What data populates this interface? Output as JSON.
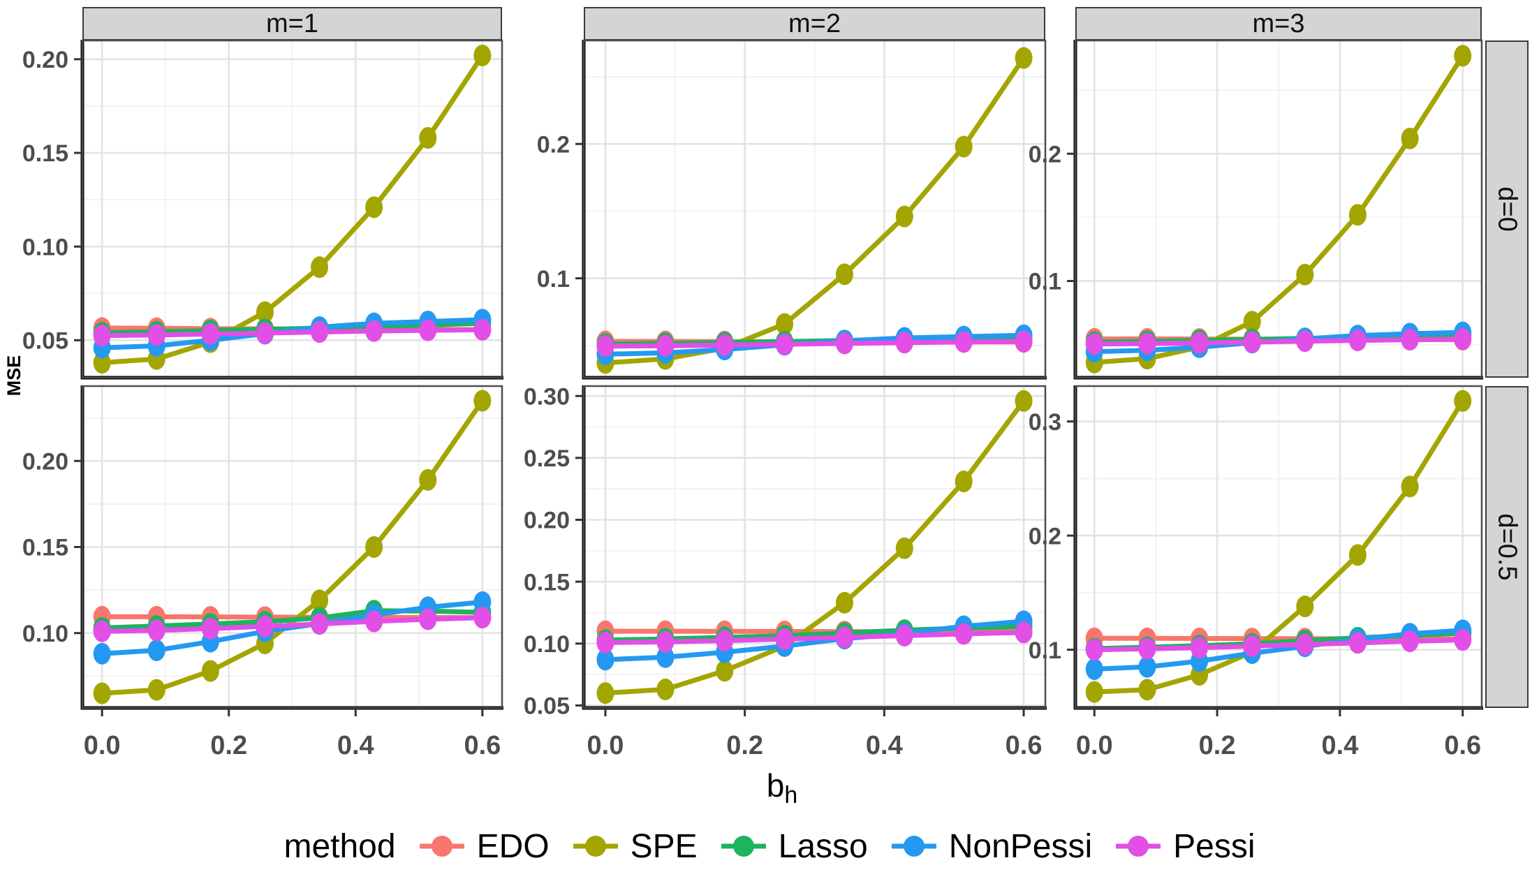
{
  "figure": {
    "ylabel": "MSE",
    "xlabel": {
      "base": "b",
      "sub": "h"
    },
    "col_strips": [
      "m=1",
      "m=2",
      "m=3"
    ],
    "row_strips": [
      "d=0",
      "d=0.5"
    ],
    "legend": {
      "title": "method",
      "entries": [
        {
          "label": "EDO",
          "color": "#F8766D"
        },
        {
          "label": "SPE",
          "color": "#A3A500"
        },
        {
          "label": "Lasso",
          "color": "#1CB45C"
        },
        {
          "label": "NonPessi",
          "color": "#2499F1"
        },
        {
          "label": "Pessi",
          "color": "#E14FE6"
        }
      ]
    },
    "colors": {
      "strip_fill": "#D4D4D4",
      "strip_border": "#3A3A3A",
      "panel_border": "#4D4D4D",
      "grid_major": "#E3E3E3",
      "grid_minor": "#F1F1F1",
      "axis_line": "#000000",
      "tick_mark": "#333333",
      "tick_text": "#4D4D4D"
    }
  },
  "chart_data": {
    "type": "line",
    "title": "",
    "xlabel": "b_h",
    "ylabel": "MSE",
    "facet": {
      "cols": "m",
      "rows": "d"
    },
    "legend_position": "bottom",
    "grid": "on",
    "x": [
      0,
      0.086,
      0.171,
      0.257,
      0.343,
      0.429,
      0.514,
      0.6
    ],
    "xlim": [
      -0.031,
      0.631
    ],
    "x_ticks": {
      "values": [
        0,
        0.2,
        0.4,
        0.6
      ],
      "labels": [
        "0.0",
        "0.2",
        "0.4",
        "0.6"
      ]
    },
    "x_minor": [
      0.1,
      0.3,
      0.5
    ],
    "panels": [
      {
        "id": "m1-d0",
        "col": "m=1",
        "row": "d=0",
        "ylim": [
          0.03,
          0.21
        ],
        "yticks": {
          "values": [
            0.05,
            0.1,
            0.15,
            0.2
          ],
          "labels": [
            "0.05",
            "0.10",
            "0.15",
            "0.20"
          ]
        },
        "series": [
          {
            "name": "EDO",
            "values": [
              0.0565,
              0.0564,
              0.0562,
              0.0561,
              0.056,
              0.0559,
              0.0558,
              0.0556
            ]
          },
          {
            "name": "SPE",
            "values": [
              0.038,
              0.04,
              0.049,
              0.065,
              0.089,
              0.121,
              0.158,
              0.202
            ]
          },
          {
            "name": "Lasso",
            "values": [
              0.054,
              0.0545,
              0.0552,
              0.0558,
              0.0565,
              0.0572,
              0.0581,
              0.059
            ]
          },
          {
            "name": "NonPessi",
            "values": [
              0.046,
              0.047,
              0.05,
              0.0535,
              0.057,
              0.059,
              0.06,
              0.061
            ]
          },
          {
            "name": "Pessi",
            "values": [
              0.0525,
              0.0528,
              0.0533,
              0.0538,
              0.0544,
              0.0549,
              0.0553,
              0.0556
            ]
          }
        ]
      },
      {
        "id": "m2-d0",
        "col": "m=2",
        "row": "d=0",
        "ylim": [
          0.026,
          0.277
        ],
        "yticks": {
          "values": [
            0.1,
            0.2
          ],
          "labels": [
            "0.1",
            "0.2"
          ]
        },
        "series": [
          {
            "name": "EDO",
            "values": [
              0.053,
              0.053,
              0.0529,
              0.0528,
              0.0528,
              0.0527,
              0.0526,
              0.0526
            ]
          },
          {
            "name": "SPE",
            "values": [
              0.037,
              0.04,
              0.048,
              0.066,
              0.103,
              0.146,
              0.198,
              0.264
            ]
          },
          {
            "name": "Lasso",
            "values": [
              0.051,
              0.0516,
              0.0522,
              0.0529,
              0.0537,
              0.0544,
              0.0552,
              0.0561
            ]
          },
          {
            "name": "NonPessi",
            "values": [
              0.0435,
              0.0445,
              0.047,
              0.0505,
              0.0535,
              0.0556,
              0.0566,
              0.0576
            ]
          },
          {
            "name": "Pessi",
            "values": [
              0.0495,
              0.0498,
              0.0503,
              0.0509,
              0.0515,
              0.0521,
              0.0526,
              0.053
            ]
          }
        ]
      },
      {
        "id": "m3-d0",
        "col": "m=3",
        "row": "d=0",
        "ylim": [
          0.024,
          0.289
        ],
        "yticks": {
          "values": [
            0.1,
            0.2
          ],
          "labels": [
            "0.1",
            "0.2"
          ]
        },
        "series": [
          {
            "name": "EDO",
            "values": [
              0.0545,
              0.0545,
              0.0544,
              0.0543,
              0.0542,
              0.0541,
              0.054,
              0.0539
            ]
          },
          {
            "name": "SPE",
            "values": [
              0.036,
              0.039,
              0.048,
              0.068,
              0.105,
              0.152,
              0.212,
              0.277
            ]
          },
          {
            "name": "Lasso",
            "values": [
              0.052,
              0.0526,
              0.0533,
              0.0541,
              0.0549,
              0.0557,
              0.0566,
              0.0576
            ]
          },
          {
            "name": "NonPessi",
            "values": [
              0.0445,
              0.0455,
              0.048,
              0.0516,
              0.0546,
              0.0571,
              0.0586,
              0.0596
            ]
          },
          {
            "name": "Pessi",
            "values": [
              0.0505,
              0.0508,
              0.0513,
              0.052,
              0.0527,
              0.0533,
              0.0539,
              0.0544
            ]
          }
        ]
      },
      {
        "id": "m1-d05",
        "col": "m=1",
        "row": "d=0.5",
        "ylim": [
          0.0565,
          0.2435
        ],
        "yticks": {
          "values": [
            0.1,
            0.15,
            0.2
          ],
          "labels": [
            "0.10",
            "0.15",
            "0.20"
          ]
        },
        "series": [
          {
            "name": "EDO",
            "values": [
              0.1095,
              0.1095,
              0.1094,
              0.1093,
              0.1092,
              0.1091,
              0.1091,
              0.109
            ]
          },
          {
            "name": "SPE",
            "values": [
              0.065,
              0.067,
              0.078,
              0.094,
              0.119,
              0.15,
              0.189,
              0.235
            ]
          },
          {
            "name": "Lasso",
            "values": [
              0.103,
              0.1041,
              0.1053,
              0.1066,
              0.1088,
              0.113,
              0.1128,
              0.112
            ]
          },
          {
            "name": "NonPessi",
            "values": [
              0.088,
              0.09,
              0.095,
              0.101,
              0.1055,
              0.1105,
              0.115,
              0.118
            ]
          },
          {
            "name": "Pessi",
            "values": [
              0.101,
              0.1016,
              0.1026,
              0.1039,
              0.1053,
              0.1068,
              0.108,
              0.109
            ]
          }
        ]
      },
      {
        "id": "m2-d05",
        "col": "m=2",
        "row": "d=0.5",
        "ylim": [
          0.048,
          0.308
        ],
        "yticks": {
          "values": [
            0.05,
            0.1,
            0.15,
            0.2,
            0.25,
            0.3
          ],
          "labels": [
            "0.05",
            "0.10",
            "0.15",
            "0.20",
            "0.25",
            "0.30"
          ]
        },
        "series": [
          {
            "name": "EDO",
            "values": [
              0.11,
              0.11,
              0.1099,
              0.1098,
              0.1097,
              0.1096,
              0.1095,
              0.1095
            ]
          },
          {
            "name": "SPE",
            "values": [
              0.06,
              0.063,
              0.078,
              0.098,
              0.133,
              0.177,
              0.231,
              0.296
            ]
          },
          {
            "name": "Lasso",
            "values": [
              0.1028,
              0.1038,
              0.105,
              0.1063,
              0.1085,
              0.1108,
              0.1125,
              0.1138
            ]
          },
          {
            "name": "NonPessi",
            "values": [
              0.087,
              0.089,
              0.093,
              0.098,
              0.104,
              0.108,
              0.114,
              0.118
            ]
          },
          {
            "name": "Pessi",
            "values": [
              0.1008,
              0.1014,
              0.1024,
              0.1036,
              0.105,
              0.1064,
              0.1078,
              0.109
            ]
          }
        ]
      },
      {
        "id": "m3-d05",
        "col": "m=3",
        "row": "d=0.5",
        "ylim": [
          0.049,
          0.331
        ],
        "yticks": {
          "values": [
            0.1,
            0.2,
            0.3
          ],
          "labels": [
            "0.1",
            "0.2",
            "0.3"
          ]
        },
        "series": [
          {
            "name": "EDO",
            "values": [
              0.11,
              0.11,
              0.1099,
              0.1098,
              0.1097,
              0.1096,
              0.1096,
              0.1095
            ]
          },
          {
            "name": "SPE",
            "values": [
              0.063,
              0.065,
              0.078,
              0.098,
              0.138,
              0.183,
              0.243,
              0.318
            ]
          },
          {
            "name": "Lasso",
            "values": [
              0.101,
              0.1022,
              0.1036,
              0.1052,
              0.108,
              0.1105,
              0.1125,
              0.1145
            ]
          },
          {
            "name": "NonPessi",
            "values": [
              0.083,
              0.085,
              0.09,
              0.097,
              0.103,
              0.109,
              0.114,
              0.117
            ]
          },
          {
            "name": "Pessi",
            "values": [
              0.1,
              0.1008,
              0.1018,
              0.1032,
              0.1046,
              0.106,
              0.1074,
              0.1086
            ]
          }
        ]
      }
    ]
  }
}
